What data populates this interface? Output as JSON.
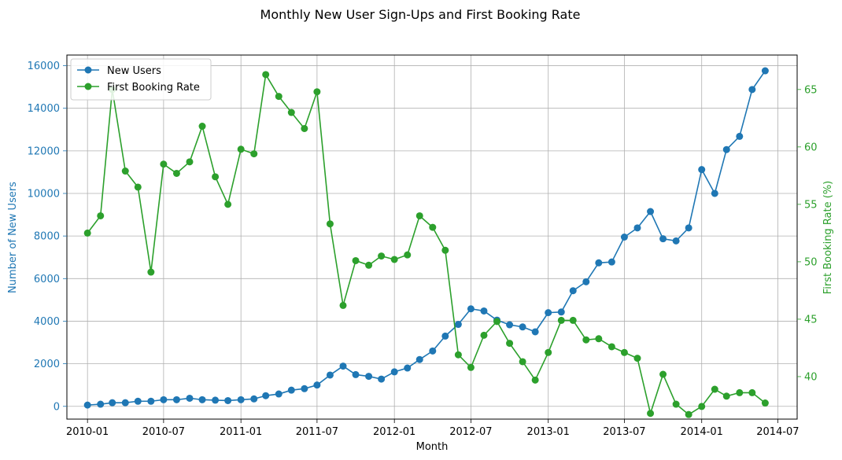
{
  "chart_data": {
    "type": "line",
    "title": "Monthly New User Sign-Ups and First Booking Rate",
    "xlabel": "Month",
    "ylabel_left": "Number of New Users",
    "ylabel_right": "First Booking Rate (%)",
    "grid": true,
    "legend_placement": "top-left",
    "x_ticks": [
      "2010-01",
      "2010-07",
      "2011-01",
      "2011-07",
      "2012-01",
      "2012-07",
      "2013-01",
      "2013-07",
      "2014-01",
      "2014-07"
    ],
    "y_left_ticks": [
      0,
      2000,
      4000,
      6000,
      8000,
      10000,
      12000,
      14000,
      16000
    ],
    "y_right_ticks": [
      40,
      45,
      50,
      55,
      60,
      65
    ],
    "ylim_left": [
      -600,
      16500
    ],
    "ylim_right": [
      36.3,
      68.0
    ],
    "xlim": [
      "2009-11-13",
      "2014-08-16"
    ],
    "colors": {
      "left": "#1f77b4",
      "right": "#2ca02c"
    },
    "x": [
      "2010-01",
      "2010-02",
      "2010-03",
      "2010-04",
      "2010-05",
      "2010-06",
      "2010-07",
      "2010-08",
      "2010-09",
      "2010-10",
      "2010-11",
      "2010-12",
      "2011-01",
      "2011-02",
      "2011-03",
      "2011-04",
      "2011-05",
      "2011-06",
      "2011-07",
      "2011-08",
      "2011-09",
      "2011-10",
      "2011-11",
      "2011-12",
      "2012-01",
      "2012-02",
      "2012-03",
      "2012-04",
      "2012-05",
      "2012-06",
      "2012-07",
      "2012-08",
      "2012-09",
      "2012-10",
      "2012-11",
      "2012-12",
      "2013-01",
      "2013-02",
      "2013-03",
      "2013-04",
      "2013-05",
      "2013-06",
      "2013-07",
      "2013-08",
      "2013-09",
      "2013-10",
      "2013-11",
      "2013-12",
      "2014-01",
      "2014-02",
      "2014-03",
      "2014-04",
      "2014-05",
      "2014-06"
    ],
    "series": [
      {
        "name": "New Users",
        "axis": "left",
        "color": "#1f77b4",
        "values": [
          60,
          100,
          170,
          170,
          240,
          240,
          310,
          310,
          380,
          310,
          290,
          270,
          310,
          350,
          500,
          580,
          760,
          830,
          1000,
          1470,
          1890,
          1490,
          1410,
          1280,
          1620,
          1800,
          2200,
          2600,
          3300,
          3850,
          4580,
          4480,
          4050,
          3830,
          3730,
          3500,
          4400,
          4430,
          5430,
          5850,
          6740,
          6780,
          7950,
          8380,
          9150,
          7870,
          7770,
          8380,
          11120,
          10000,
          12060,
          12680,
          14880,
          15760
        ]
      },
      {
        "name": "First Booking Rate",
        "axis": "right",
        "color": "#2ca02c",
        "values": [
          52.5,
          54.0,
          65.0,
          57.9,
          56.5,
          49.1,
          58.5,
          57.7,
          58.7,
          61.8,
          57.4,
          55.0,
          59.8,
          59.4,
          66.3,
          64.4,
          63.0,
          61.6,
          64.8,
          53.3,
          46.2,
          50.1,
          49.7,
          50.5,
          50.2,
          50.6,
          54.0,
          53.0,
          51.0,
          41.9,
          40.8,
          43.6,
          44.8,
          42.9,
          41.3,
          39.7,
          42.1,
          44.9,
          44.9,
          43.2,
          43.3,
          42.6,
          42.1,
          41.6,
          36.8,
          40.2,
          37.6,
          36.7,
          37.4,
          38.9,
          38.3,
          38.6,
          38.6,
          37.7
        ]
      }
    ]
  }
}
